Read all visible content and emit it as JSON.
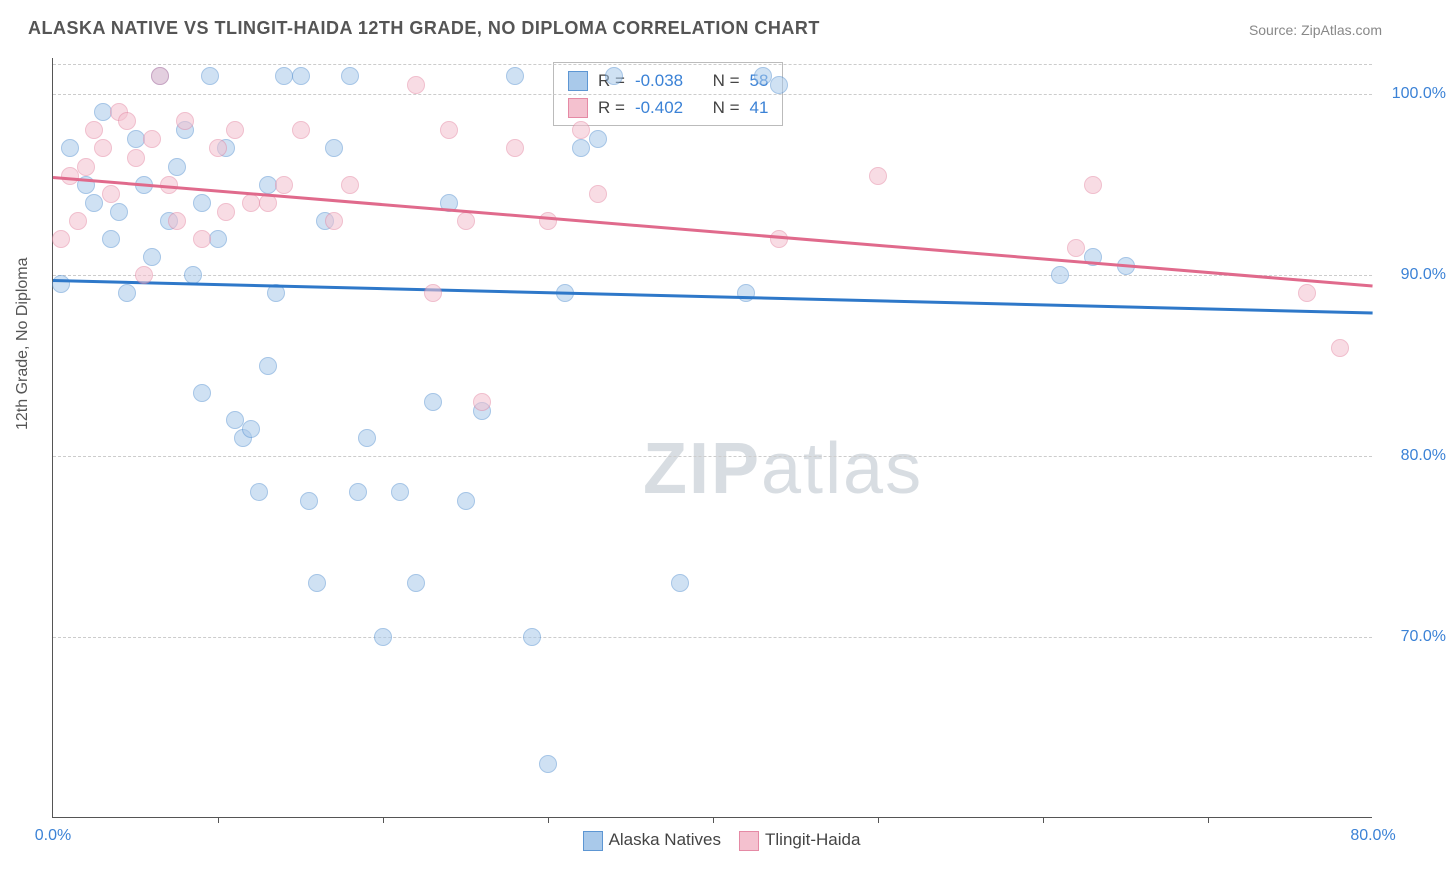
{
  "title": "ALASKA NATIVE VS TLINGIT-HAIDA 12TH GRADE, NO DIPLOMA CORRELATION CHART",
  "source": "Source: ZipAtlas.com",
  "ylabel": "12th Grade, No Diploma",
  "watermark_a": "ZIP",
  "watermark_b": "atlas",
  "chart": {
    "type": "scatter-with-trend",
    "xlim": [
      0,
      80
    ],
    "ylim": [
      60,
      102
    ],
    "yticks": [
      {
        "v": 70,
        "label": "70.0%"
      },
      {
        "v": 80,
        "label": "80.0%"
      },
      {
        "v": 90,
        "label": "90.0%"
      },
      {
        "v": 100,
        "label": "100.0%"
      }
    ],
    "xticks": [
      {
        "v": 0,
        "label": "0.0%"
      },
      {
        "v": 80,
        "label": "80.0%"
      }
    ],
    "xminor": [
      10,
      20,
      30,
      40,
      50,
      60,
      70
    ],
    "grid_color": "#cccccc",
    "background": "#ffffff",
    "axis_color": "#555555",
    "label_color": "#555555",
    "tick_color": "#3b82d6",
    "marker_radius": 9,
    "marker_opacity": 0.55,
    "series": [
      {
        "name": "Alaska Natives",
        "legend": "Alaska Natives",
        "fill": "#a9c9ea",
        "stroke": "#5d96d3",
        "line_color": "#2e78c9",
        "R": "-0.038",
        "N": "58",
        "trend": {
          "x1": 0,
          "y1": 89.8,
          "x2": 80,
          "y2": 88.0
        },
        "points": [
          [
            0.5,
            89.5
          ],
          [
            1,
            97
          ],
          [
            2,
            95
          ],
          [
            2.5,
            94
          ],
          [
            3,
            99
          ],
          [
            3.5,
            92
          ],
          [
            4,
            93.5
          ],
          [
            4.5,
            89
          ],
          [
            5,
            97.5
          ],
          [
            5.5,
            95
          ],
          [
            6,
            91
          ],
          [
            6.5,
            101
          ],
          [
            7,
            93
          ],
          [
            7.5,
            96
          ],
          [
            8,
            98
          ],
          [
            8.5,
            90
          ],
          [
            9,
            94
          ],
          [
            9.5,
            101
          ],
          [
            10,
            92
          ],
          [
            10.5,
            97
          ],
          [
            11,
            82
          ],
          [
            11.5,
            81
          ],
          [
            12,
            81.5
          ],
          [
            12.5,
            78
          ],
          [
            13,
            95
          ],
          [
            13.5,
            89
          ],
          [
            14,
            101
          ],
          [
            15,
            101
          ],
          [
            15.5,
            77.5
          ],
          [
            16,
            73
          ],
          [
            16.5,
            93
          ],
          [
            17,
            97
          ],
          [
            18,
            101
          ],
          [
            18.5,
            78
          ],
          [
            19,
            81
          ],
          [
            20,
            70
          ],
          [
            21,
            78
          ],
          [
            22,
            73
          ],
          [
            23,
            83
          ],
          [
            24,
            94
          ],
          [
            25,
            77.5
          ],
          [
            26,
            82.5
          ],
          [
            28,
            101
          ],
          [
            29,
            70
          ],
          [
            30,
            63
          ],
          [
            31,
            89
          ],
          [
            32,
            97
          ],
          [
            33,
            97.5
          ],
          [
            34,
            101
          ],
          [
            38,
            73
          ],
          [
            42,
            89
          ],
          [
            43,
            101
          ],
          [
            44,
            100.5
          ],
          [
            61,
            90
          ],
          [
            63,
            91
          ],
          [
            65,
            90.5
          ],
          [
            13,
            85
          ],
          [
            9,
            83.5
          ]
        ]
      },
      {
        "name": "Tlingit-Haida",
        "legend": "Tlingit-Haida",
        "fill": "#f4c1cf",
        "stroke": "#e58aa5",
        "line_color": "#e06a8c",
        "R": "-0.402",
        "N": "41",
        "trend": {
          "x1": 0,
          "y1": 95.5,
          "x2": 80,
          "y2": 89.5
        },
        "points": [
          [
            0.5,
            92
          ],
          [
            1,
            95.5
          ],
          [
            1.5,
            93
          ],
          [
            2,
            96
          ],
          [
            2.5,
            98
          ],
          [
            3,
            97
          ],
          [
            3.5,
            94.5
          ],
          [
            4,
            99
          ],
          [
            4.5,
            98.5
          ],
          [
            5,
            96.5
          ],
          [
            5.5,
            90
          ],
          [
            6,
            97.5
          ],
          [
            6.5,
            101
          ],
          [
            7,
            95
          ],
          [
            7.5,
            93
          ],
          [
            8,
            98.5
          ],
          [
            9,
            92
          ],
          [
            10,
            97
          ],
          [
            10.5,
            93.5
          ],
          [
            11,
            98
          ],
          [
            12,
            94
          ],
          [
            13,
            94
          ],
          [
            14,
            95
          ],
          [
            15,
            98
          ],
          [
            17,
            93
          ],
          [
            18,
            95
          ],
          [
            22,
            100.5
          ],
          [
            23,
            89
          ],
          [
            24,
            98
          ],
          [
            25,
            93
          ],
          [
            26,
            83
          ],
          [
            28,
            97
          ],
          [
            30,
            93
          ],
          [
            32,
            98
          ],
          [
            33,
            94.5
          ],
          [
            44,
            92
          ],
          [
            50,
            95.5
          ],
          [
            62,
            91.5
          ],
          [
            63,
            95
          ],
          [
            76,
            89
          ],
          [
            78,
            86
          ]
        ]
      }
    ]
  }
}
